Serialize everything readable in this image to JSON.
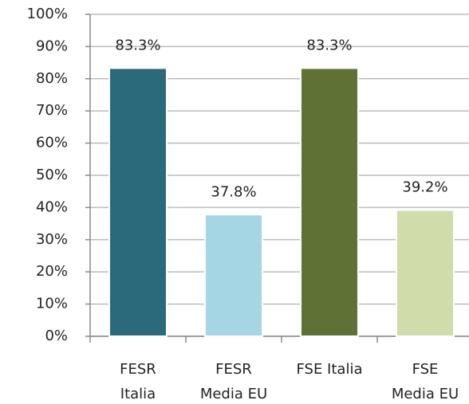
{
  "chart_data": {
    "type": "bar",
    "categories": [
      [
        "FESR",
        "Italia"
      ],
      [
        "FESR",
        "Media EU"
      ],
      [
        "FSE Italia"
      ],
      [
        "FSE",
        "Media EU"
      ]
    ],
    "values": [
      83.3,
      37.8,
      83.3,
      39.2
    ],
    "value_labels": [
      "83.3%",
      "37.8%",
      "83.3%",
      "39.2%"
    ],
    "colors": [
      "#2b6a7b",
      "#a5d6e4",
      "#5f7135",
      "#d0ddab"
    ],
    "ylim": [
      0,
      100
    ],
    "yticks": [
      {
        "value": 0,
        "label": "0%"
      },
      {
        "value": 10,
        "label": "10%"
      },
      {
        "value": 20,
        "label": "20%"
      },
      {
        "value": 30,
        "label": "30%"
      },
      {
        "value": 40,
        "label": "40%"
      },
      {
        "value": 50,
        "label": "50%"
      },
      {
        "value": 60,
        "label": "60%"
      },
      {
        "value": 70,
        "label": "70%"
      },
      {
        "value": 80,
        "label": "80%"
      },
      {
        "value": 90,
        "label": "90%"
      },
      {
        "value": 100,
        "label": "100%"
      }
    ],
    "grid": true
  }
}
